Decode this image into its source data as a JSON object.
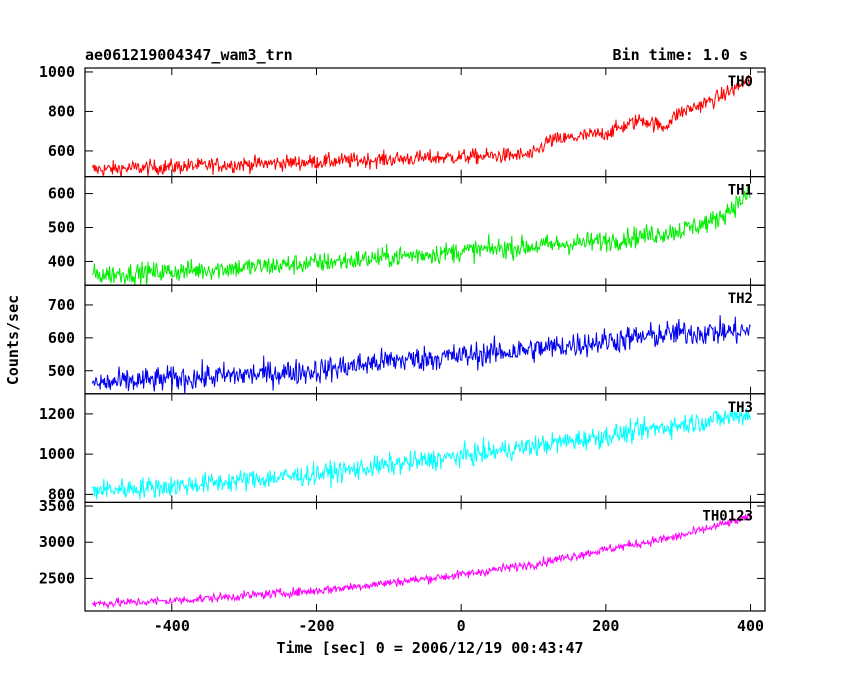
{
  "header": {
    "title": "ae061219004347_wam3_trn",
    "bin_time": "Bin time: 1.0 s"
  },
  "axes": {
    "xlabel": "Time [sec] 0 = 2006/12/19 00:43:47",
    "ylabel": "Counts/sec"
  },
  "chart_data": {
    "type": "line",
    "title": "ae061219004347_wam3_trn",
    "subtitle": "Bin time: 1.0 s",
    "xlabel": "Time [sec] 0 = 2006/12/19 00:43:47",
    "ylabel": "Counts/sec",
    "xlim": [
      -520,
      420
    ],
    "x_ticks": [
      -400,
      -200,
      0,
      200,
      400
    ],
    "x_range_data": [
      -510,
      400
    ],
    "grid": false,
    "stacked_panels": true,
    "series": [
      {
        "name": "TH0",
        "color": "#ff0000",
        "ylim": [
          470,
          1020
        ],
        "y_ticks": [
          600,
          800,
          1000
        ],
        "trend_x": [
          -510,
          -400,
          -200,
          0,
          100,
          120,
          200,
          250,
          280,
          300,
          350,
          400
        ],
        "trend_y": [
          505,
          520,
          545,
          570,
          580,
          650,
          690,
          760,
          720,
          790,
          860,
          960
        ],
        "noise": 28
      },
      {
        "name": "TH1",
        "color": "#00ee00",
        "ylim": [
          330,
          650
        ],
        "y_ticks": [
          400,
          500,
          600
        ],
        "trend_x": [
          -510,
          -400,
          -200,
          0,
          200,
          300,
          350,
          400
        ],
        "trend_y": [
          360,
          370,
          395,
          430,
          460,
          490,
          520,
          600
        ],
        "noise": 22
      },
      {
        "name": "TH2",
        "color": "#0000ee",
        "ylim": [
          430,
          760
        ],
        "y_ticks": [
          500,
          600,
          700
        ],
        "trend_x": [
          -510,
          -400,
          -200,
          -100,
          0,
          100,
          200,
          300,
          400
        ],
        "trend_y": [
          460,
          475,
          500,
          530,
          545,
          565,
          590,
          615,
          620
        ],
        "noise": 28
      },
      {
        "name": "TH3",
        "color": "#00ffff",
        "ylim": [
          760,
          1300
        ],
        "y_ticks": [
          800,
          1000,
          1200
        ],
        "trend_x": [
          -510,
          -400,
          -200,
          0,
          200,
          400
        ],
        "trend_y": [
          820,
          840,
          900,
          990,
          1090,
          1200
        ],
        "noise": 38
      },
      {
        "name": "TH0123",
        "color": "#ff00ff",
        "ylim": [
          2050,
          3550
        ],
        "y_ticks": [
          2500,
          3000,
          3500
        ],
        "trend_x": [
          -510,
          -400,
          -200,
          0,
          100,
          200,
          300,
          400
        ],
        "trend_y": [
          2150,
          2190,
          2330,
          2550,
          2700,
          2900,
          3080,
          3350
        ],
        "noise": 45
      }
    ]
  }
}
